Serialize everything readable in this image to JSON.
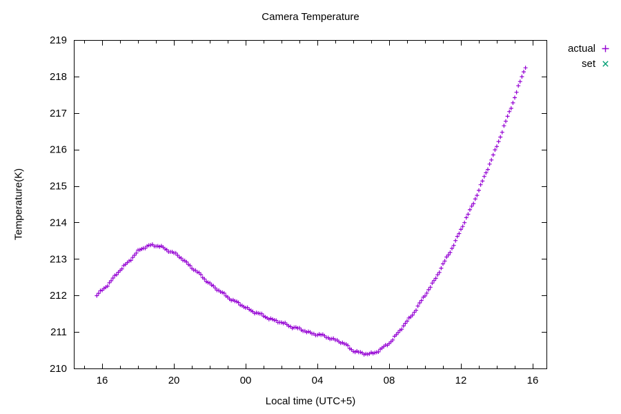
{
  "chart_data": {
    "type": "scatter",
    "title": "Camera Temperature",
    "xlabel": "Local time (UTC+5)",
    "ylabel": "Temperature(K)",
    "grid": false,
    "legend_position": "outside-top-right",
    "x_axis": {
      "tick_labels": [
        "16",
        "20",
        "00",
        "04",
        "08",
        "12",
        "16"
      ],
      "tick_hours": [
        16,
        20,
        24,
        28,
        32,
        36,
        40
      ],
      "minor_tick_every_hours": 1,
      "range_hours": [
        14.42,
        40.77
      ],
      "mirrored_ticks": true
    },
    "y_axis": {
      "ticks": [
        210,
        211,
        212,
        213,
        214,
        215,
        216,
        217,
        218,
        219
      ],
      "range": [
        210,
        219
      ],
      "mirrored_ticks": true
    },
    "series": [
      {
        "name": "actual",
        "marker": "plus",
        "color": "#9400D3",
        "sample_interval_hours": 0.1,
        "anchor_points": [
          [
            15.7,
            212.0
          ],
          [
            16.0,
            212.14
          ],
          [
            16.3,
            212.3
          ],
          [
            16.6,
            212.46
          ],
          [
            17.0,
            212.69
          ],
          [
            17.4,
            212.9
          ],
          [
            17.8,
            213.1
          ],
          [
            18.1,
            213.24
          ],
          [
            18.4,
            213.33
          ],
          [
            18.7,
            213.38
          ],
          [
            19.0,
            213.36
          ],
          [
            19.3,
            213.32
          ],
          [
            19.6,
            213.26
          ],
          [
            20.0,
            213.16
          ],
          [
            20.4,
            213.02
          ],
          [
            20.8,
            212.86
          ],
          [
            21.2,
            212.68
          ],
          [
            21.6,
            212.5
          ],
          [
            22.0,
            212.33
          ],
          [
            22.4,
            212.17
          ],
          [
            22.8,
            212.03
          ],
          [
            23.2,
            211.9
          ],
          [
            23.6,
            211.78
          ],
          [
            24.0,
            211.67
          ],
          [
            24.4,
            211.57
          ],
          [
            24.8,
            211.48
          ],
          [
            25.2,
            211.4
          ],
          [
            25.6,
            211.32
          ],
          [
            26.0,
            211.25
          ],
          [
            26.4,
            211.18
          ],
          [
            26.8,
            211.11
          ],
          [
            27.2,
            211.04
          ],
          [
            27.6,
            210.98
          ],
          [
            28.0,
            210.93
          ],
          [
            28.4,
            210.88
          ],
          [
            28.8,
            210.82
          ],
          [
            29.2,
            210.74
          ],
          [
            29.6,
            210.64
          ],
          [
            30.0,
            210.5
          ],
          [
            30.4,
            210.42
          ],
          [
            30.8,
            210.4
          ],
          [
            31.2,
            210.44
          ],
          [
            31.6,
            210.54
          ],
          [
            32.0,
            210.7
          ],
          [
            32.4,
            210.92
          ],
          [
            32.8,
            211.16
          ],
          [
            33.2,
            211.42
          ],
          [
            33.6,
            211.7
          ],
          [
            34.0,
            212.0
          ],
          [
            34.4,
            212.32
          ],
          [
            34.8,
            212.66
          ],
          [
            35.2,
            213.02
          ],
          [
            35.6,
            213.4
          ],
          [
            36.0,
            213.8
          ],
          [
            36.4,
            214.22
          ],
          [
            36.8,
            214.66
          ],
          [
            37.2,
            215.12
          ],
          [
            37.6,
            215.6
          ],
          [
            38.0,
            216.1
          ],
          [
            38.4,
            216.62
          ],
          [
            38.8,
            217.16
          ],
          [
            39.2,
            217.72
          ],
          [
            39.6,
            218.26
          ]
        ]
      },
      {
        "name": "set",
        "marker": "cross",
        "color": "#009E73",
        "anchor_points": []
      }
    ]
  },
  "colors": {
    "axis": "#000000",
    "background": "#ffffff",
    "actual_series": "#9400D3",
    "set_series": "#009E73"
  }
}
